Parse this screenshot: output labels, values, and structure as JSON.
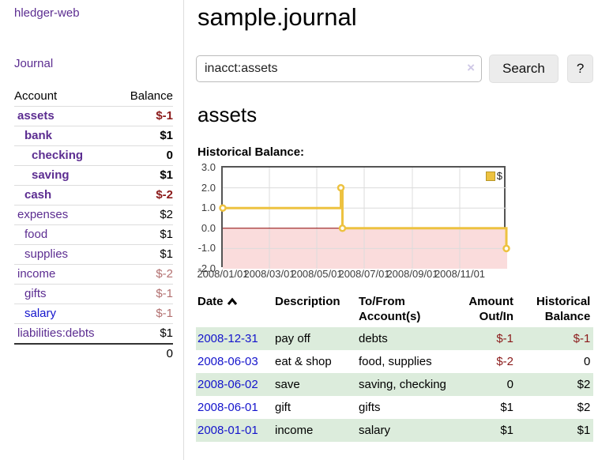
{
  "palette": {
    "link_purple": "#5c2d91",
    "link_blue": "#1414cc",
    "negative_strong": "#8b1a1a",
    "negative_muted": "#b37070",
    "row_green": "#dcecdc",
    "chart_gold": "#edc240",
    "chart_negative_fill": "#fadcdc",
    "chart_zero_line": "#8b0000"
  },
  "sidebar": {
    "brand": "hledger-web",
    "nav_journal": "Journal",
    "accounts": {
      "header_account": "Account",
      "header_balance": "Balance",
      "rows": [
        {
          "name": "assets",
          "balance": "$-1"
        },
        {
          "name": "bank",
          "balance": "$1"
        },
        {
          "name": "checking",
          "balance": "0"
        },
        {
          "name": "saving",
          "balance": "$1"
        },
        {
          "name": "cash",
          "balance": "$-2"
        },
        {
          "name": "expenses",
          "balance": "$2"
        },
        {
          "name": "food",
          "balance": "$1"
        },
        {
          "name": "supplies",
          "balance": "$1"
        },
        {
          "name": "income",
          "balance": "$-2"
        },
        {
          "name": "gifts",
          "balance": "$-1"
        },
        {
          "name": "salary",
          "balance": "$-1"
        },
        {
          "name": "liabilities:debts",
          "balance": "$1"
        }
      ],
      "total": "0"
    }
  },
  "main": {
    "title": "sample.journal",
    "search": {
      "value": "inacct:assets",
      "clear": "×",
      "search_button": "Search",
      "help_button": "?"
    },
    "account_heading": "assets",
    "section_label": "Historical Balance:",
    "register": {
      "header": {
        "date": "Date",
        "description": "Description",
        "account_line1": "To/From",
        "account_line2": "Account(s)",
        "amount_line1": "Amount",
        "amount_line2": "Out/In",
        "balance_line1": "Historical",
        "balance_line2": "Balance"
      },
      "rows": [
        {
          "date": "2008-12-31",
          "description": "pay off",
          "accounts": "debts",
          "amount": "$-1",
          "balance": "$-1"
        },
        {
          "date": "2008-06-03",
          "description": "eat & shop",
          "accounts": "food, supplies",
          "amount": "$-2",
          "balance": "0"
        },
        {
          "date": "2008-06-02",
          "description": "save",
          "accounts": "saving, checking",
          "amount": "0",
          "balance": "$2"
        },
        {
          "date": "2008-06-01",
          "description": "gift",
          "accounts": "gifts",
          "amount": "$1",
          "balance": "$2"
        },
        {
          "date": "2008-01-01",
          "description": "income",
          "accounts": "salary",
          "amount": "$1",
          "balance": "$1"
        }
      ]
    }
  },
  "chart_data": {
    "type": "line",
    "step": true,
    "title": "Historical Balance of assets",
    "series": [
      {
        "name": "$",
        "color": "#edc240",
        "points": [
          [
            "2008-01-01",
            1
          ],
          [
            "2008-06-01",
            2
          ],
          [
            "2008-06-03",
            0
          ],
          [
            "2008-12-31",
            -1
          ]
        ]
      }
    ],
    "xlim": [
      "2008-01-01",
      "2009-01-01"
    ],
    "ylim": [
      -2,
      3
    ],
    "yticks": [
      3,
      2,
      1,
      0,
      -1,
      -2
    ],
    "ytick_labels": [
      "3.0",
      "2.0",
      "1.0",
      "0.0",
      "-1.0",
      "-2.0"
    ],
    "xticks": [
      "2008-01-01",
      "2008-03-01",
      "2008-05-01",
      "2008-07-01",
      "2008-09-01",
      "2008-11-01"
    ],
    "xtick_labels": [
      "2008/01/01",
      "2008/03/01",
      "2008/05/01",
      "2008/07/01",
      "2008/09/01",
      "2008/11/01"
    ],
    "legend": {
      "label": "$",
      "position": "top-right"
    },
    "grid": true,
    "negative_region_shaded": true
  }
}
